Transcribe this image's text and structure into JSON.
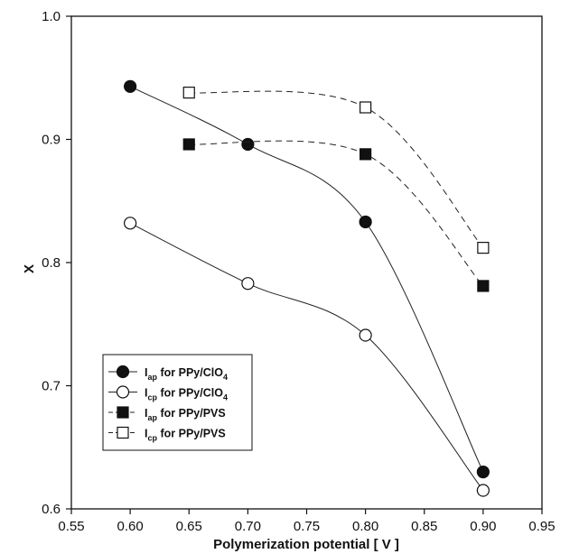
{
  "chart_data": {
    "type": "line",
    "title": "",
    "xlabel": "Polymerization potential [ V ]",
    "ylabel": "X",
    "xlim": [
      0.55,
      0.95
    ],
    "ylim": [
      0.6,
      1.0
    ],
    "x_ticks": [
      "0.55",
      "0.60",
      "0.65",
      "0.70",
      "0.75",
      "0.80",
      "0.85",
      "0.90",
      "0.95"
    ],
    "y_ticks": [
      "0.6",
      "0.7",
      "0.8",
      "0.9",
      "1.0"
    ],
    "grid": false,
    "legend_position": "bottom-left",
    "series": [
      {
        "name": "Iap for PPy/ClO4",
        "label_main": "I",
        "label_sub": "ap",
        "label_mid": " for PPy/ClO",
        "label_sub2": "4",
        "marker": "filled-circle",
        "line": "solid",
        "x": [
          0.6,
          0.7,
          0.8,
          0.9
        ],
        "y": [
          0.943,
          0.896,
          0.833,
          0.63
        ]
      },
      {
        "name": "Icp for PPy/ClO4",
        "label_main": "I",
        "label_sub": "cp",
        "label_mid": " for PPy/ClO",
        "label_sub2": "4",
        "marker": "open-circle",
        "line": "solid",
        "x": [
          0.6,
          0.7,
          0.8,
          0.9
        ],
        "y": [
          0.832,
          0.783,
          0.741,
          0.615
        ]
      },
      {
        "name": "Iap for PPy/PVS",
        "label_main": "I",
        "label_sub": "ap",
        "label_mid": " for PPy/PVS",
        "label_sub2": "",
        "marker": "filled-square",
        "line": "dashed",
        "x": [
          0.65,
          0.8,
          0.9
        ],
        "y": [
          0.896,
          0.888,
          0.781
        ]
      },
      {
        "name": "Icp for PPy/PVS",
        "label_main": "I",
        "label_sub": "cp",
        "label_mid": " for PPy/PVS",
        "label_sub2": "",
        "marker": "open-square",
        "line": "dashed",
        "x": [
          0.65,
          0.8,
          0.9
        ],
        "y": [
          0.938,
          0.926,
          0.812
        ]
      }
    ]
  }
}
